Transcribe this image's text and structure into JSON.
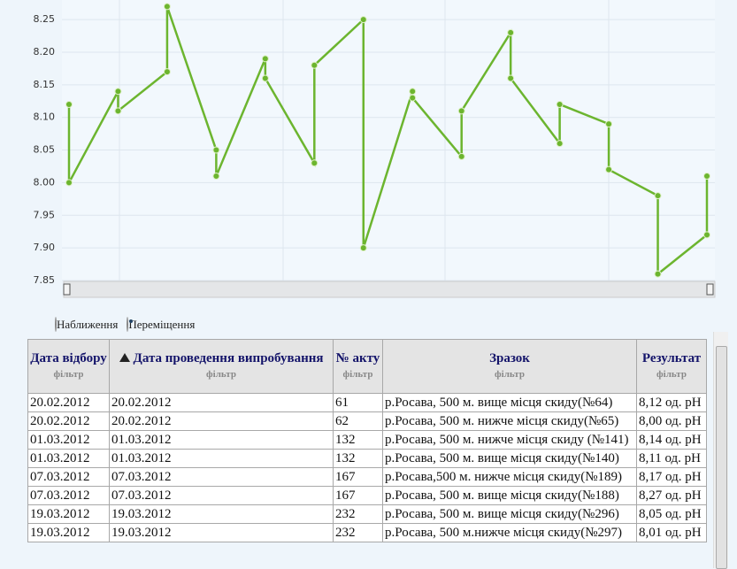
{
  "chart_data": {
    "type": "line",
    "color": "#6cb52f",
    "values": [
      8.12,
      8.0,
      8.14,
      8.11,
      8.17,
      8.27,
      8.05,
      8.01,
      8.19,
      8.16,
      8.03,
      8.18,
      8.25,
      7.9,
      8.14,
      8.13,
      8.04,
      8.11,
      8.23,
      8.16,
      8.06,
      8.12,
      8.09,
      8.02,
      7.98,
      7.86,
      7.92,
      8.01
    ],
    "ylim": [
      7.85,
      8.28
    ],
    "yticks": [
      7.85,
      {
        "value": 7.9,
        "label": "7.90"
      },
      7.95,
      {
        "value": 8.0,
        "label": "8.00"
      },
      8.05,
      {
        "value": 8.1,
        "label": "8.10"
      },
      8.15,
      {
        "value": 8.2,
        "label": "8.20"
      },
      8.25
    ],
    "grid": true
  },
  "radio_options": [
    {
      "label": "Наближення",
      "selected": false
    },
    {
      "label": "Переміщення",
      "selected": true
    }
  ],
  "table": {
    "columns": [
      {
        "title": "Дата відбору",
        "filter": "фільтр"
      },
      {
        "title": "Дата проведення випробування",
        "filter": "фільтр"
      },
      {
        "title": "№ акту",
        "filter": "фільтр"
      },
      {
        "title": "Зразок",
        "filter": "фільтр"
      },
      {
        "title": "Результат",
        "filter": "фільтр"
      }
    ],
    "rows": [
      [
        "20.02.2012",
        "20.02.2012",
        "61",
        "р.Росава, 500 м. вище місця скиду(№64)",
        "8,12 од. рН"
      ],
      [
        "20.02.2012",
        "20.02.2012",
        "62",
        "р.Росава, 500 м. нижче місця скиду(№65)",
        "8,00 од. рН"
      ],
      [
        "01.03.2012",
        "01.03.2012",
        "132",
        "р.Росава, 500 м. нижче місця скиду (№141)",
        "8,14 од. рН"
      ],
      [
        "01.03.2012",
        "01.03.2012",
        "132",
        "р.Росава, 500 м. вище місця скиду(№140)",
        "8,11 од. рН"
      ],
      [
        "07.03.2012",
        "07.03.2012",
        "167",
        "р.Росава,500 м. нижче місця скиду(№189)",
        "8,17 од. рН"
      ],
      [
        "07.03.2012",
        "07.03.2012",
        "167",
        "р.Росава, 500 м. вище місця скиду(№188)",
        "8,27 од. рН"
      ],
      [
        "19.03.2012",
        "19.03.2012",
        "232",
        "р.Росава, 500 м. вище місця скиду(№296)",
        "8,05 од. рН"
      ],
      [
        "19.03.2012",
        "19.03.2012",
        "232",
        "р.Росава, 500 м.нижче місця скиду(№297)",
        "8,01 од. рН"
      ]
    ]
  }
}
